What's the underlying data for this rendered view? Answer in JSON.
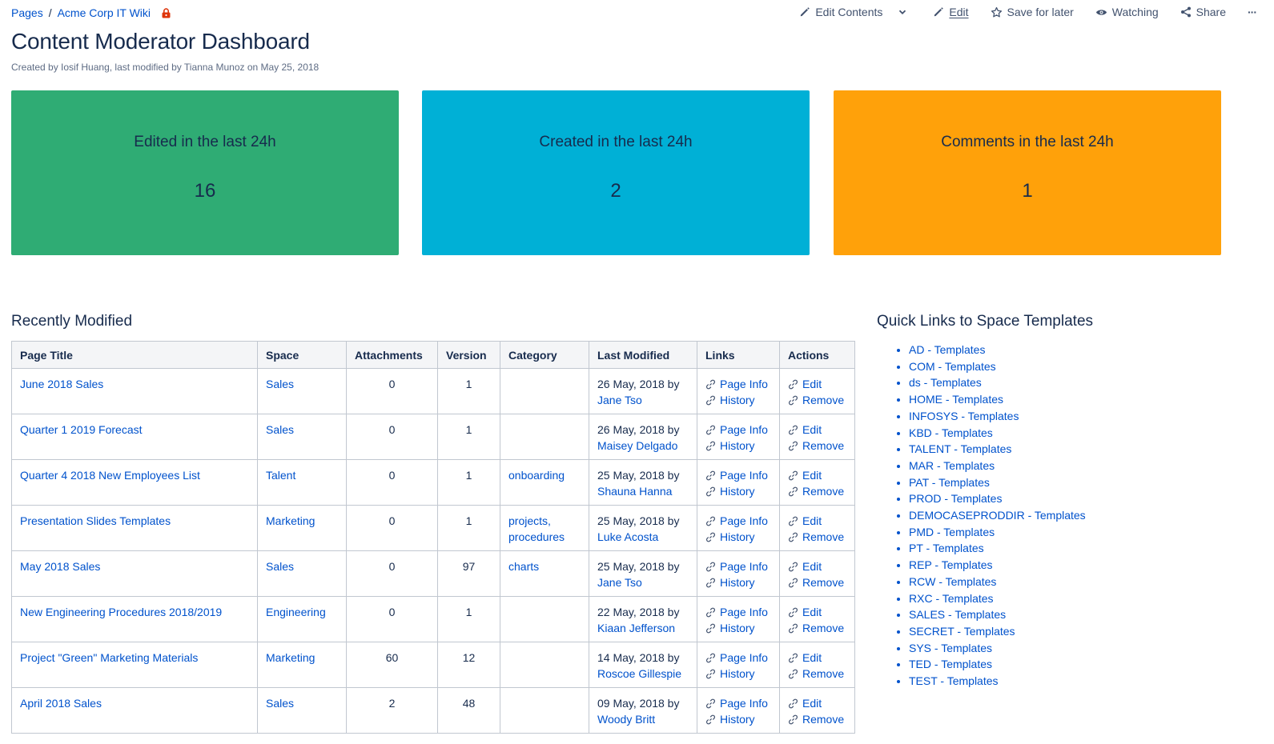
{
  "breadcrumb": {
    "pages": "Pages",
    "sep": "/",
    "space": "Acme Corp IT Wiki"
  },
  "toolbar": {
    "edit_contents": "Edit Contents",
    "edit": "Edit",
    "save_for_later": "Save for later",
    "watching": "Watching",
    "share": "Share",
    "more": "···"
  },
  "page": {
    "title": "Content Moderator Dashboard",
    "byline": "Created by Iosif Huang, last modified by Tianna Munoz on May 25, 2018"
  },
  "cards": [
    {
      "label": "Edited in the last 24h",
      "value": "16",
      "color": "#2fac74"
    },
    {
      "label": "Created in the last 24h",
      "value": "2",
      "color": "#00b0d6"
    },
    {
      "label": "Comments in the last 24h",
      "value": "1",
      "color": "#ffa10a"
    }
  ],
  "recent": {
    "heading": "Recently Modified",
    "columns": [
      "Page Title",
      "Space",
      "Attachments",
      "Version",
      "Category",
      "Last Modified",
      "Links",
      "Actions"
    ],
    "link_labels": {
      "info": "Page Info",
      "history": "History",
      "edit": "Edit",
      "remove": "Remove"
    },
    "rows": [
      {
        "title": "June 2018 Sales",
        "space": "Sales",
        "attachments": "0",
        "version": "1",
        "cat1": "",
        "cat2": "",
        "date": "26 May, 2018 by",
        "user": "Jane Tso"
      },
      {
        "title": "Quarter 1 2019 Forecast",
        "space": "Sales",
        "attachments": "0",
        "version": "1",
        "cat1": "",
        "cat2": "",
        "date": "26 May, 2018 by",
        "user": "Maisey Delgado"
      },
      {
        "title": "Quarter 4 2018 New Employees List",
        "space": "Talent",
        "attachments": "0",
        "version": "1",
        "cat1": "onboarding",
        "cat2": "",
        "date": "25 May, 2018 by",
        "user": "Shauna Hanna"
      },
      {
        "title": "Presentation Slides Templates",
        "space": "Marketing",
        "attachments": "0",
        "version": "1",
        "cat1": "projects,",
        "cat2": "procedures",
        "date": "25 May, 2018 by",
        "user": "Luke Acosta"
      },
      {
        "title": "May 2018 Sales",
        "space": "Sales",
        "attachments": "0",
        "version": "97",
        "cat1": "charts",
        "cat2": "",
        "date": "25 May, 2018 by",
        "user": "Jane Tso"
      },
      {
        "title": "New Engineering Procedures 2018/2019",
        "space": "Engineering",
        "attachments": "0",
        "version": "1",
        "cat1": "",
        "cat2": "",
        "date": "22 May, 2018 by",
        "user": "Kiaan Jefferson"
      },
      {
        "title": "Project \"Green\" Marketing Materials",
        "space": "Marketing",
        "attachments": "60",
        "version": "12",
        "cat1": "",
        "cat2": "",
        "date": "14 May, 2018 by",
        "user": "Roscoe Gillespie"
      },
      {
        "title": "April 2018 Sales",
        "space": "Sales",
        "attachments": "2",
        "version": "48",
        "cat1": "",
        "cat2": "",
        "date": "09 May, 2018 by",
        "user": "Woody Britt"
      }
    ]
  },
  "quicklinks": {
    "heading": "Quick Links to Space Templates",
    "items": [
      "AD - Templates",
      "COM - Templates",
      "ds - Templates",
      "HOME - Templates",
      "INFOSYS - Templates",
      "KBD - Templates",
      "TALENT - Templates",
      "MAR - Templates",
      "PAT - Templates",
      "PROD - Templates",
      "DEMOCASEPRODDIR - Templates",
      "PMD - Templates",
      "PT - Templates",
      "REP - Templates",
      "RCW - Templates",
      "RXC - Templates",
      "SALES - Templates",
      "SECRET - Templates",
      "SYS - Templates",
      "TED - Templates",
      "TEST - Templates"
    ]
  }
}
